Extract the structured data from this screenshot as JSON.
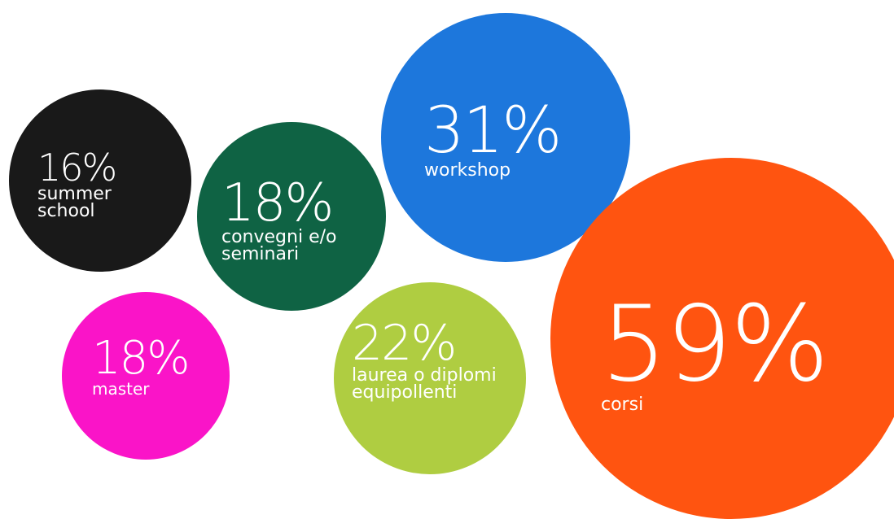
{
  "chart_data": {
    "type": "bubble",
    "title": "",
    "items": [
      {
        "key": "summer_school",
        "value": 16,
        "pct_text": "16%",
        "label": "summer\nschool",
        "color": "#191919"
      },
      {
        "key": "convegni",
        "value": 18,
        "pct_text": "18%",
        "label": "convegni e/o\nseminari",
        "color": "#0f6344"
      },
      {
        "key": "workshop",
        "value": 31,
        "pct_text": "31%",
        "label": "workshop",
        "color": "#1d77dc"
      },
      {
        "key": "master",
        "value": 18,
        "pct_text": "18%",
        "label": "master",
        "color": "#fa14c8"
      },
      {
        "key": "laurea",
        "value": 22,
        "pct_text": "22%",
        "label": "laurea o diplomi\nequipollenti",
        "color": "#afcd41"
      },
      {
        "key": "corsi",
        "value": 59,
        "pct_text": "59%",
        "label": "corsi",
        "color": "#ff5410"
      }
    ]
  }
}
